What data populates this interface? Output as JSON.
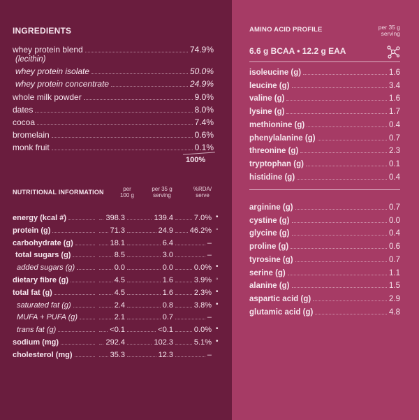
{
  "ingredients": {
    "title": "INGREDIENTS",
    "items": [
      {
        "name": "whey protein blend",
        "note": "(lecithin)",
        "value": "74.9%",
        "sub": false
      },
      {
        "name": "whey protein isolate",
        "value": "50.0%",
        "sub": true
      },
      {
        "name": "whey protein concentrate",
        "value": "24.9%",
        "sub": true
      },
      {
        "name": "whole milk powder",
        "value": "9.0%",
        "sub": false
      },
      {
        "name": "dates",
        "value": "8.0%",
        "sub": false
      },
      {
        "name": "cocoa",
        "value": "7.4%",
        "sub": false
      },
      {
        "name": "bromelain",
        "value": "0.6%",
        "sub": false
      },
      {
        "name": "monk fruit",
        "value": "0.1%",
        "sub": false
      }
    ],
    "total": "100%"
  },
  "nutrition": {
    "title": "NUTRITIONAL INFORMATION",
    "headers": [
      [
        "per",
        "100 g"
      ],
      [
        "per 35 g",
        "serving"
      ],
      [
        "%RDA/",
        "serve"
      ]
    ],
    "rows": [
      {
        "name": "energy (kcal #)",
        "per_100g": "398.3",
        "per_serve": "139.4",
        "rda": "7.0%",
        "mark": "•",
        "level": 0
      },
      {
        "name": "protein (g)",
        "per_100g": "71.3",
        "per_serve": "24.9",
        "rda": "46.2%",
        "mark": "◦",
        "level": 0
      },
      {
        "name": "carbohydrate (g)",
        "per_100g": "18.1",
        "per_serve": "6.4",
        "rda": "–",
        "level": 0
      },
      {
        "name": "total sugars (g)",
        "per_100g": "8.5",
        "per_serve": "3.0",
        "rda": "–",
        "level": 1
      },
      {
        "name": "added sugars (g)",
        "per_100g": "0.0",
        "per_serve": "0.0",
        "rda": "0.0%",
        "mark": "•",
        "level": 2
      },
      {
        "name": "dietary fibre (g)",
        "per_100g": "4.5",
        "per_serve": "1.6",
        "rda": "3.9%",
        "mark": "◦",
        "level": 0
      },
      {
        "name": "total fat (g)",
        "per_100g": "4.5",
        "per_serve": "1.6",
        "rda": "2.3%",
        "mark": "•",
        "level": 0
      },
      {
        "name": "saturated fat (g)",
        "per_100g": "2.4",
        "per_serve": "0.8",
        "rda": "3.8%",
        "mark": "•",
        "level": 2
      },
      {
        "name": "MUFA + PUFA (g)",
        "per_100g": "2.1",
        "per_serve": "0.7",
        "rda": "–",
        "level": 2
      },
      {
        "name": "trans fat (g)",
        "per_100g": "<0.1",
        "per_serve": "<0.1",
        "rda": "0.0%",
        "mark": "•",
        "level": 2
      },
      {
        "name": "sodium (mg)",
        "per_100g": "292.4",
        "per_serve": "102.3",
        "rda": "5.1%",
        "mark": "•",
        "level": 0
      },
      {
        "name": "cholesterol (mg)",
        "per_100g": "35.3",
        "per_serve": "12.3",
        "rda": "–",
        "level": 0
      }
    ]
  },
  "amino": {
    "title": "AMINO ACID PROFILE",
    "header": [
      "per 35 g",
      "serving"
    ],
    "summary": "6.6 g BCAA  •  12.2 g EAA",
    "group1": [
      [
        "isoleucine (g)",
        "1.6"
      ],
      [
        "leucine (g)",
        "3.4"
      ],
      [
        "valine (g)",
        "1.6"
      ],
      [
        "lysine (g)",
        "1.7"
      ],
      [
        "methionine (g)",
        "0.4"
      ],
      [
        "phenylalanine (g)",
        "0.7"
      ],
      [
        "threonine (g)",
        "2.3"
      ],
      [
        "tryptophan (g)",
        "0.1"
      ],
      [
        "histidine (g)",
        "0.4"
      ]
    ],
    "group2": [
      [
        "arginine (g)",
        "0.7"
      ],
      [
        "cystine (g)",
        "0.0"
      ],
      [
        "glycine (g)",
        "0.4"
      ],
      [
        "proline (g)",
        "0.6"
      ],
      [
        "tyrosine (g)",
        "0.7"
      ],
      [
        "serine (g)",
        "1.1"
      ],
      [
        "alanine (g)",
        "1.5"
      ],
      [
        "aspartic acid (g)",
        "2.9"
      ],
      [
        "glutamic acid (g)",
        "4.8"
      ]
    ]
  }
}
